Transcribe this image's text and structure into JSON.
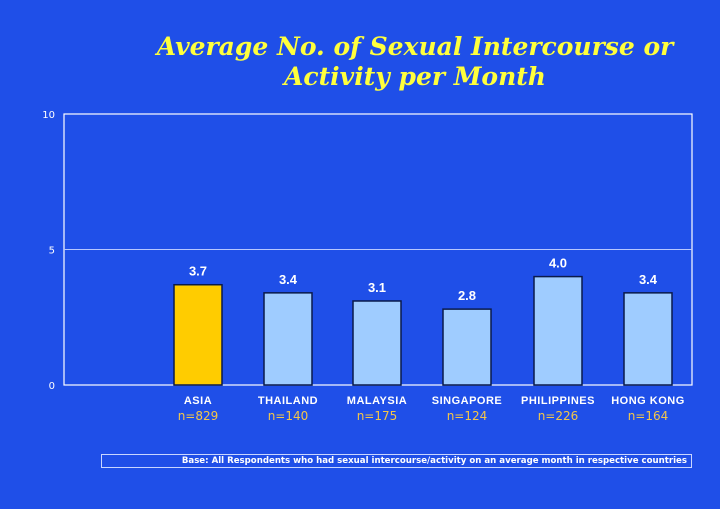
{
  "chart_data": {
    "type": "bar",
    "title_lines": [
      "Average No. of Sexual Intercourse or",
      "Activity per Month"
    ],
    "categories": [
      "ASIA",
      "THAILAND",
      "MALAYSIA",
      "SINGAPORE",
      "PHILIPPINES",
      "HONG KONG"
    ],
    "values": [
      3.7,
      3.4,
      3.1,
      2.8,
      4.0,
      3.4
    ],
    "value_labels": [
      "3.7",
      "3.4",
      "3.1",
      "2.8",
      "4.0",
      "3.4"
    ],
    "sample_sizes": [
      "n=829",
      "n=140",
      "n=175",
      "n=124",
      "n=226",
      "n=164"
    ],
    "ylim": [
      0,
      10
    ],
    "yticks": [
      "0",
      "5",
      "10"
    ],
    "grid": true,
    "colors": {
      "highlight_bar": "#ffcc00",
      "bar": "#9fccff",
      "bar_border": "#0a1a4a",
      "background": "#1f4fe8",
      "title": "#ffff3c",
      "n_label": "#f3c64a"
    }
  },
  "footnote": "Base: All Respondents who had sexual intercourse/activity on an average month in respective countries"
}
